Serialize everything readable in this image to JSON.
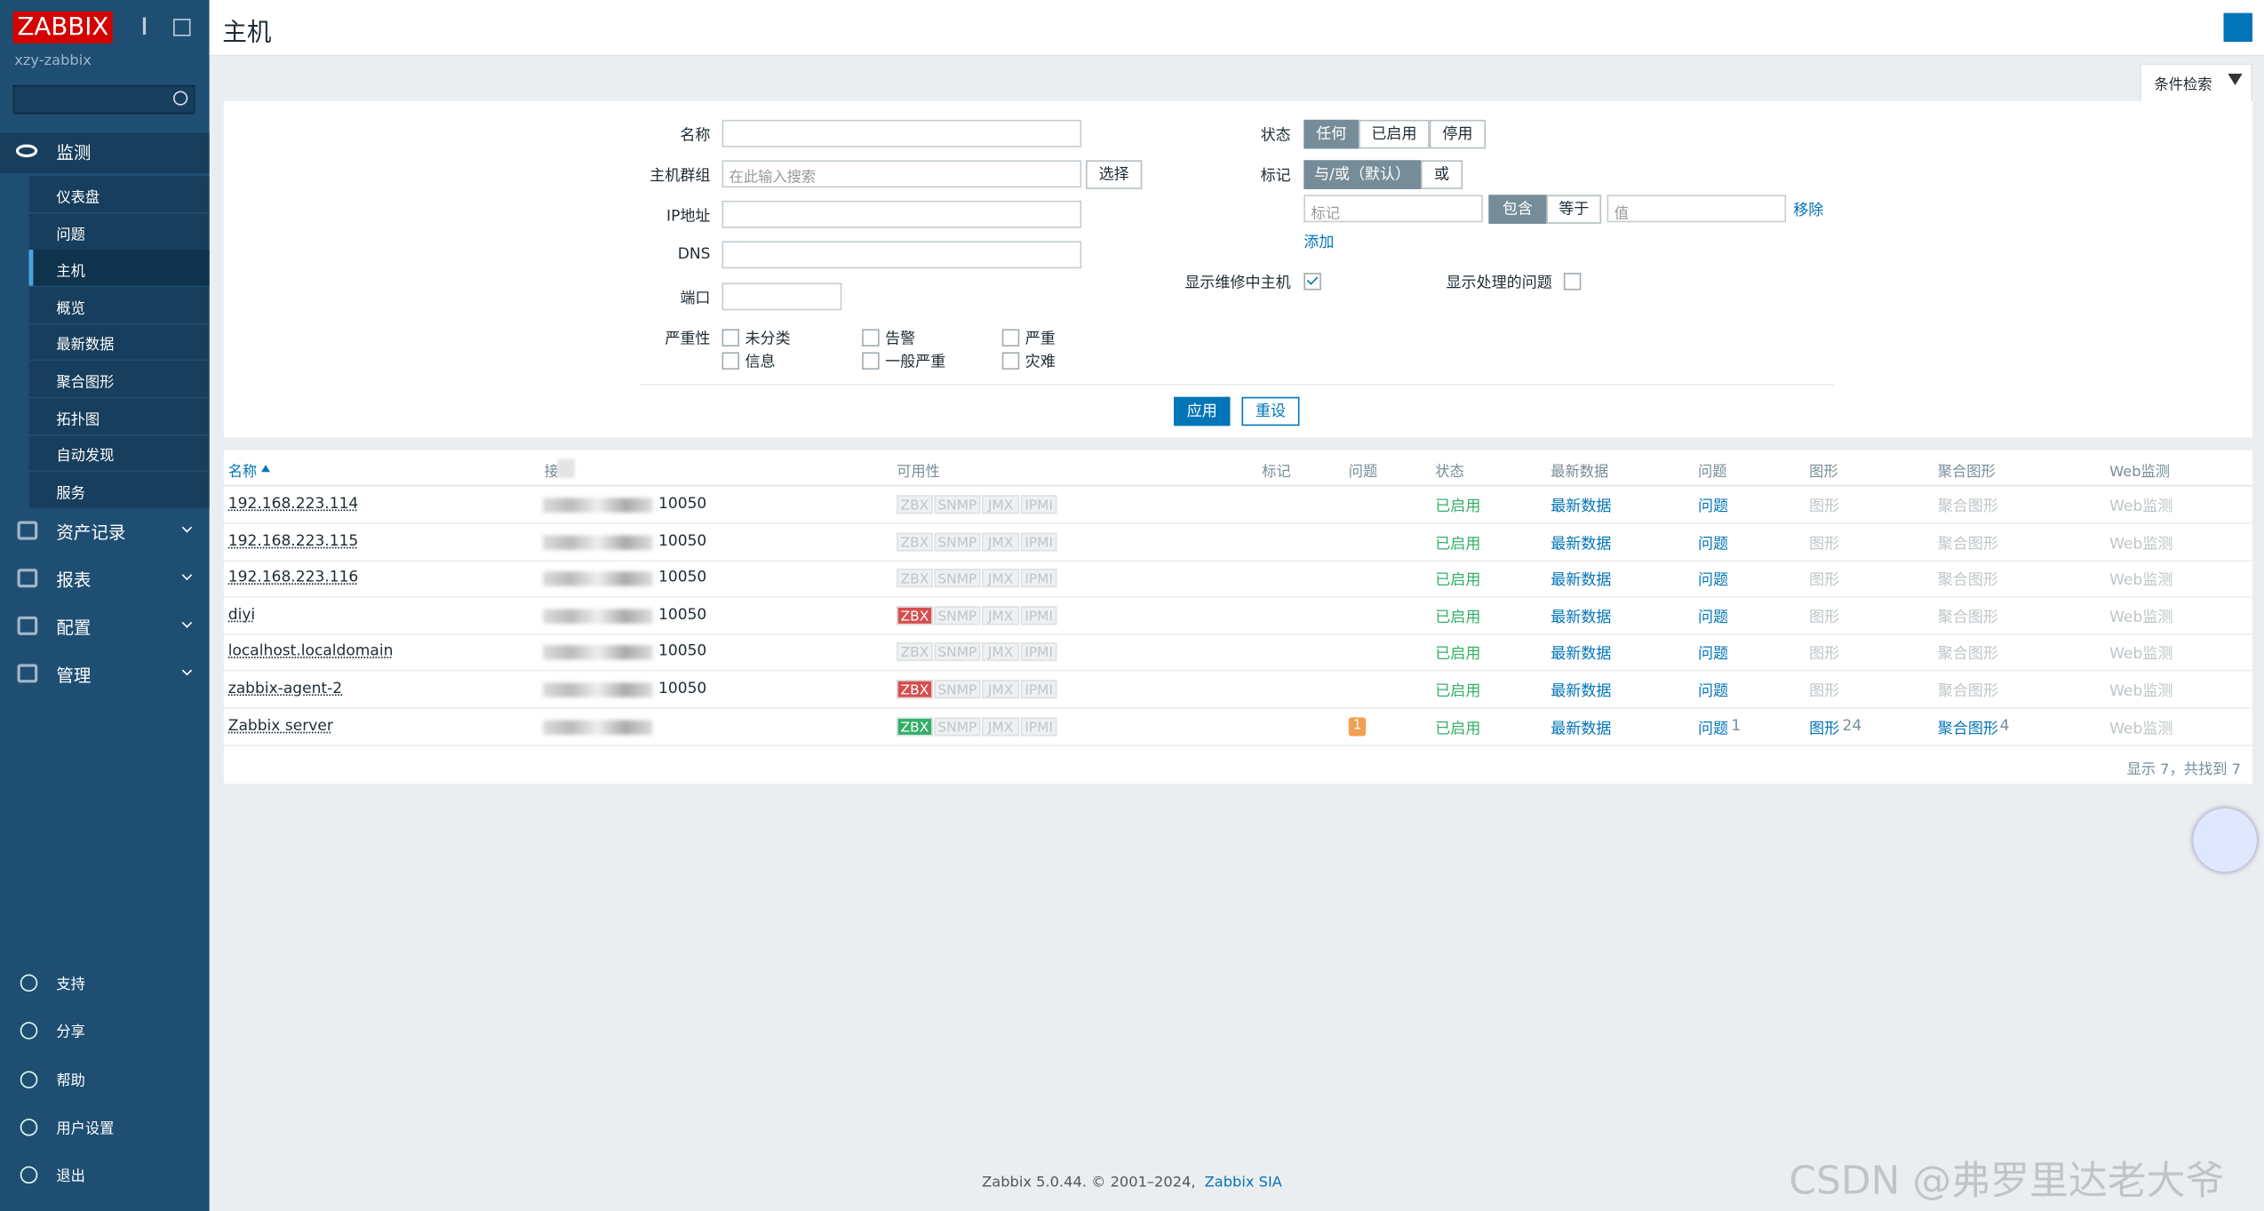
{
  "sidebar": {
    "logo": "ZABBIX",
    "server": "xzy-zabbix",
    "menu": [
      {
        "label": "监测",
        "items": [
          "仪表盘",
          "问题",
          "主机",
          "概览",
          "最新数据",
          "聚合图形",
          "拓扑图",
          "自动发现",
          "服务"
        ]
      },
      {
        "label": "资产记录"
      },
      {
        "label": "报表"
      },
      {
        "label": "配置"
      },
      {
        "label": "管理"
      }
    ],
    "bottom": [
      "支持",
      "分享",
      "帮助",
      "用户设置",
      "退出"
    ]
  },
  "header": {
    "title": "主机"
  },
  "filter": {
    "tab": "条件检索",
    "name_label": "名称",
    "group_label": "主机群组",
    "group_placeholder": "在此输入搜索",
    "select": "选择",
    "ip_label": "IP地址",
    "dns_label": "DNS",
    "port_label": "端口",
    "severity_label": "严重性",
    "severities": [
      "未分类",
      "告警",
      "严重",
      "信息",
      "一般严重",
      "灾难"
    ],
    "status_label": "状态",
    "status_options": [
      "任何",
      "已启用",
      "停用"
    ],
    "tags_label": "标记",
    "tag_ops": [
      "与/或（默认）",
      "或"
    ],
    "tag_placeholder": "标记",
    "tag_match": [
      "包含",
      "等于"
    ],
    "value_placeholder": "值",
    "remove": "移除",
    "add": "添加",
    "maintenance_label": "显示维修中主机",
    "suppressed_label": "显示处理的问题",
    "apply": "应用",
    "reset": "重设"
  },
  "table": {
    "columns": [
      "名称",
      "接",
      "可用性",
      "标记",
      "问题",
      "状态",
      "最新数据",
      "问题",
      "图形",
      "聚合图形",
      "Web监测"
    ],
    "availability": [
      "ZBX",
      "SNMP",
      "JMX",
      "IPMI"
    ],
    "rows": [
      {
        "name": "192.168.223.114",
        "port": "10050",
        "zbx": "unknown",
        "status": "已启用",
        "latest": "最新数据",
        "problems": "问题",
        "graphs": "图形",
        "screens": "聚合图形",
        "web": "Web监测"
      },
      {
        "name": "192.168.223.115",
        "port": "10050",
        "zbx": "unknown",
        "status": "已启用",
        "latest": "最新数据",
        "problems": "问题",
        "graphs": "图形",
        "screens": "聚合图形",
        "web": "Web监测"
      },
      {
        "name": "192.168.223.116",
        "port": "10050",
        "zbx": "unknown",
        "status": "已启用",
        "latest": "最新数据",
        "problems": "问题",
        "graphs": "图形",
        "screens": "聚合图形",
        "web": "Web监测"
      },
      {
        "name": "diyi",
        "port": "10050",
        "zbx": "unavailable",
        "status": "已启用",
        "latest": "最新数据",
        "problems": "问题",
        "graphs": "图形",
        "screens": "聚合图形",
        "web": "Web监测"
      },
      {
        "name": "localhost.localdomain",
        "port": "10050",
        "zbx": "unknown",
        "status": "已启用",
        "latest": "最新数据",
        "problems": "问题",
        "graphs": "图形",
        "screens": "聚合图形",
        "web": "Web监测"
      },
      {
        "name": "zabbix-agent-2",
        "port": "10050",
        "zbx": "unavailable",
        "status": "已启用",
        "latest": "最新数据",
        "problems": "问题",
        "graphs": "图形",
        "screens": "聚合图形",
        "web": "Web监测"
      },
      {
        "name": "Zabbix server",
        "zbx": "available",
        "problem_badge": "1",
        "status": "已启用",
        "latest": "最新数据",
        "problems": "问题",
        "problems_count": "1",
        "graphs": "图形",
        "graphs_count": "24",
        "screens": "聚合图形",
        "screens_count": "4",
        "web": "Web监测"
      }
    ],
    "summary": "显示 7，共找到 7"
  },
  "footer": {
    "text": "Zabbix 5.0.44. © 2001–2024,",
    "link": "Zabbix SIA"
  },
  "watermark": "CSDN @弗罗里达老大爷"
}
